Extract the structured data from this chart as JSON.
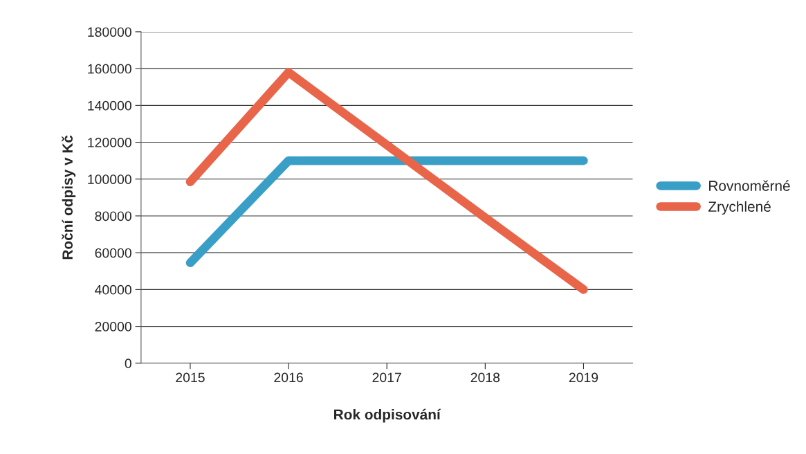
{
  "chart_data": {
    "type": "line",
    "xlabel": "Rok odpisování",
    "ylabel": "Roční odpisy v Kč",
    "categories": [
      "2015",
      "2016",
      "2017",
      "2018",
      "2019"
    ],
    "series": [
      {
        "name": "Rovnoměrné",
        "color": "#3a9fc7",
        "values": [
          54500,
          110000,
          110000,
          110000,
          110000
        ]
      },
      {
        "name": "Zrychlené",
        "color": "#e8654a",
        "values": [
          98500,
          158000,
          118500,
          79000,
          40000
        ]
      }
    ],
    "ylim": [
      0,
      180000
    ],
    "yticks": [
      0,
      20000,
      40000,
      60000,
      80000,
      100000,
      120000,
      140000,
      160000,
      180000
    ],
    "grid": "y",
    "legend": "right",
    "marker": "none",
    "line_style": "solid"
  }
}
